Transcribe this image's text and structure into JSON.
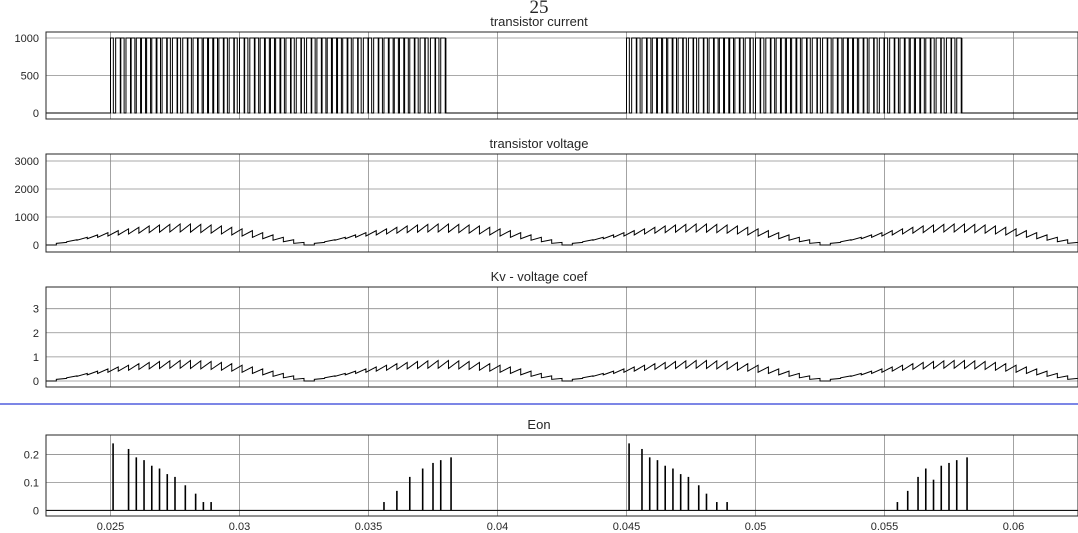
{
  "page_number": "25",
  "separator_color": "#2f3fd6",
  "chart_data": [
    {
      "type": "line",
      "title": "transistor current",
      "xlim": [
        0.0225,
        0.0625
      ],
      "ylim": [
        -80,
        1080
      ],
      "yticks": [
        0,
        500,
        1000
      ],
      "ytick_labels": [
        "0",
        "500",
        "1000"
      ],
      "xticks": [
        0.025,
        0.03,
        0.035,
        0.04,
        0.045,
        0.05,
        0.055,
        0.06
      ],
      "grid": true,
      "series": [
        {
          "style": "pwm",
          "on_value": 1000,
          "off_value": 0,
          "conduction_intervals": [
            [
              0.025,
              0.038
            ],
            [
              0.045,
              0.058
            ]
          ],
          "pulse_period": 0.0002
        }
      ]
    },
    {
      "type": "line",
      "title": "transistor voltage",
      "xlim": [
        0.0225,
        0.0625
      ],
      "ylim": [
        -250,
        3250
      ],
      "yticks": [
        0,
        1000,
        2000,
        3000
      ],
      "ytick_labels": [
        "0",
        "1000",
        "2000",
        "3000"
      ],
      "xticks": [
        0.025,
        0.03,
        0.035,
        0.04,
        0.045,
        0.05,
        0.055,
        0.06
      ],
      "grid": true,
      "series": [
        {
          "style": "ripple-envelope",
          "peak": 750,
          "envelope_period": 0.02,
          "envelope_phase": 0.0225,
          "ripple_period": 0.0004
        }
      ]
    },
    {
      "type": "line",
      "title": "Kv - voltage coef",
      "xlim": [
        0.0225,
        0.0625
      ],
      "ylim": [
        -0.25,
        3.9
      ],
      "yticks": [
        0,
        1,
        2,
        3
      ],
      "ytick_labels": [
        "0",
        "1",
        "2",
        "3"
      ],
      "xticks": [
        0.025,
        0.03,
        0.035,
        0.04,
        0.045,
        0.05,
        0.055,
        0.06
      ],
      "grid": true,
      "series": [
        {
          "style": "ripple-envelope",
          "peak": 0.85,
          "envelope_period": 0.02,
          "envelope_phase": 0.0225,
          "ripple_period": 0.0004
        }
      ]
    },
    {
      "type": "bar",
      "title": "Eon",
      "xlim": [
        0.0225,
        0.0625
      ],
      "ylim": [
        -0.02,
        0.27
      ],
      "yticks": [
        0,
        0.1,
        0.2
      ],
      "ytick_labels": [
        "0",
        "0.1",
        "0.2"
      ],
      "xticks": [
        0.025,
        0.03,
        0.035,
        0.04,
        0.045,
        0.05,
        0.055,
        0.06
      ],
      "xtick_labels": [
        "0.025",
        "0.03",
        "0.035",
        "0.04",
        "0.045",
        "0.05",
        "0.055",
        "0.06"
      ],
      "grid": true,
      "series": [
        {
          "style": "impulses",
          "x": [
            0.0251,
            0.0257,
            0.026,
            0.0263,
            0.0266,
            0.0269,
            0.0272,
            0.0275,
            0.0279,
            0.0283,
            0.0286,
            0.0289,
            0.0356,
            0.0361,
            0.0366,
            0.0371,
            0.0375,
            0.0378,
            0.0382,
            0.0451,
            0.0456,
            0.0459,
            0.0462,
            0.0465,
            0.0468,
            0.0471,
            0.0474,
            0.0478,
            0.0481,
            0.0485,
            0.0489,
            0.0555,
            0.0559,
            0.0563,
            0.0566,
            0.0569,
            0.0572,
            0.0575,
            0.0578,
            0.0582
          ],
          "values": [
            0.24,
            0.22,
            0.19,
            0.18,
            0.16,
            0.15,
            0.13,
            0.12,
            0.09,
            0.06,
            0.03,
            0.03,
            0.03,
            0.07,
            0.12,
            0.15,
            0.17,
            0.18,
            0.19,
            0.24,
            0.22,
            0.19,
            0.18,
            0.16,
            0.15,
            0.13,
            0.12,
            0.09,
            0.06,
            0.03,
            0.03,
            0.03,
            0.07,
            0.12,
            0.15,
            0.11,
            0.16,
            0.17,
            0.18,
            0.19
          ]
        }
      ]
    }
  ]
}
